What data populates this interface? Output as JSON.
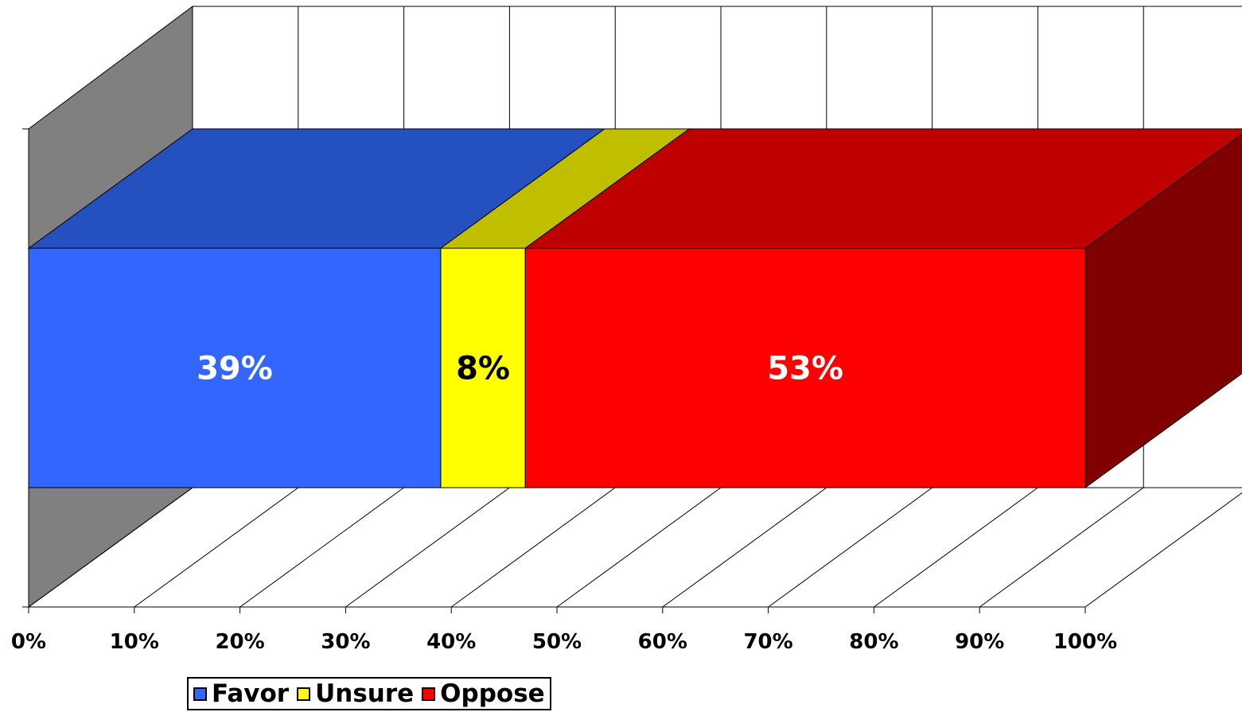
{
  "chart_data": {
    "type": "bar",
    "orientation": "horizontal",
    "stacked": "100%",
    "three_d": true,
    "categories": [
      ""
    ],
    "series": [
      {
        "name": "Favor",
        "values": [
          39
        ],
        "label": "39%",
        "color": "#3366FF",
        "top_color": "#2450C0",
        "label_color": "#FFFFFF"
      },
      {
        "name": "Unsure",
        "values": [
          8
        ],
        "label": "8%",
        "color": "#FFFF00",
        "top_color": "#BFBF00",
        "label_color": "#000000"
      },
      {
        "name": "Oppose",
        "values": [
          53
        ],
        "label": "53%",
        "color": "#FF0000",
        "top_color": "#BF0000",
        "side_color": "#800000",
        "label_color": "#FFFFFF"
      }
    ],
    "x_ticks": [
      "0%",
      "10%",
      "20%",
      "30%",
      "40%",
      "50%",
      "60%",
      "70%",
      "80%",
      "90%",
      "100%"
    ],
    "xlim": [
      0,
      100
    ],
    "grid": true,
    "legend_position": "bottom",
    "wall_color": "#808080"
  }
}
